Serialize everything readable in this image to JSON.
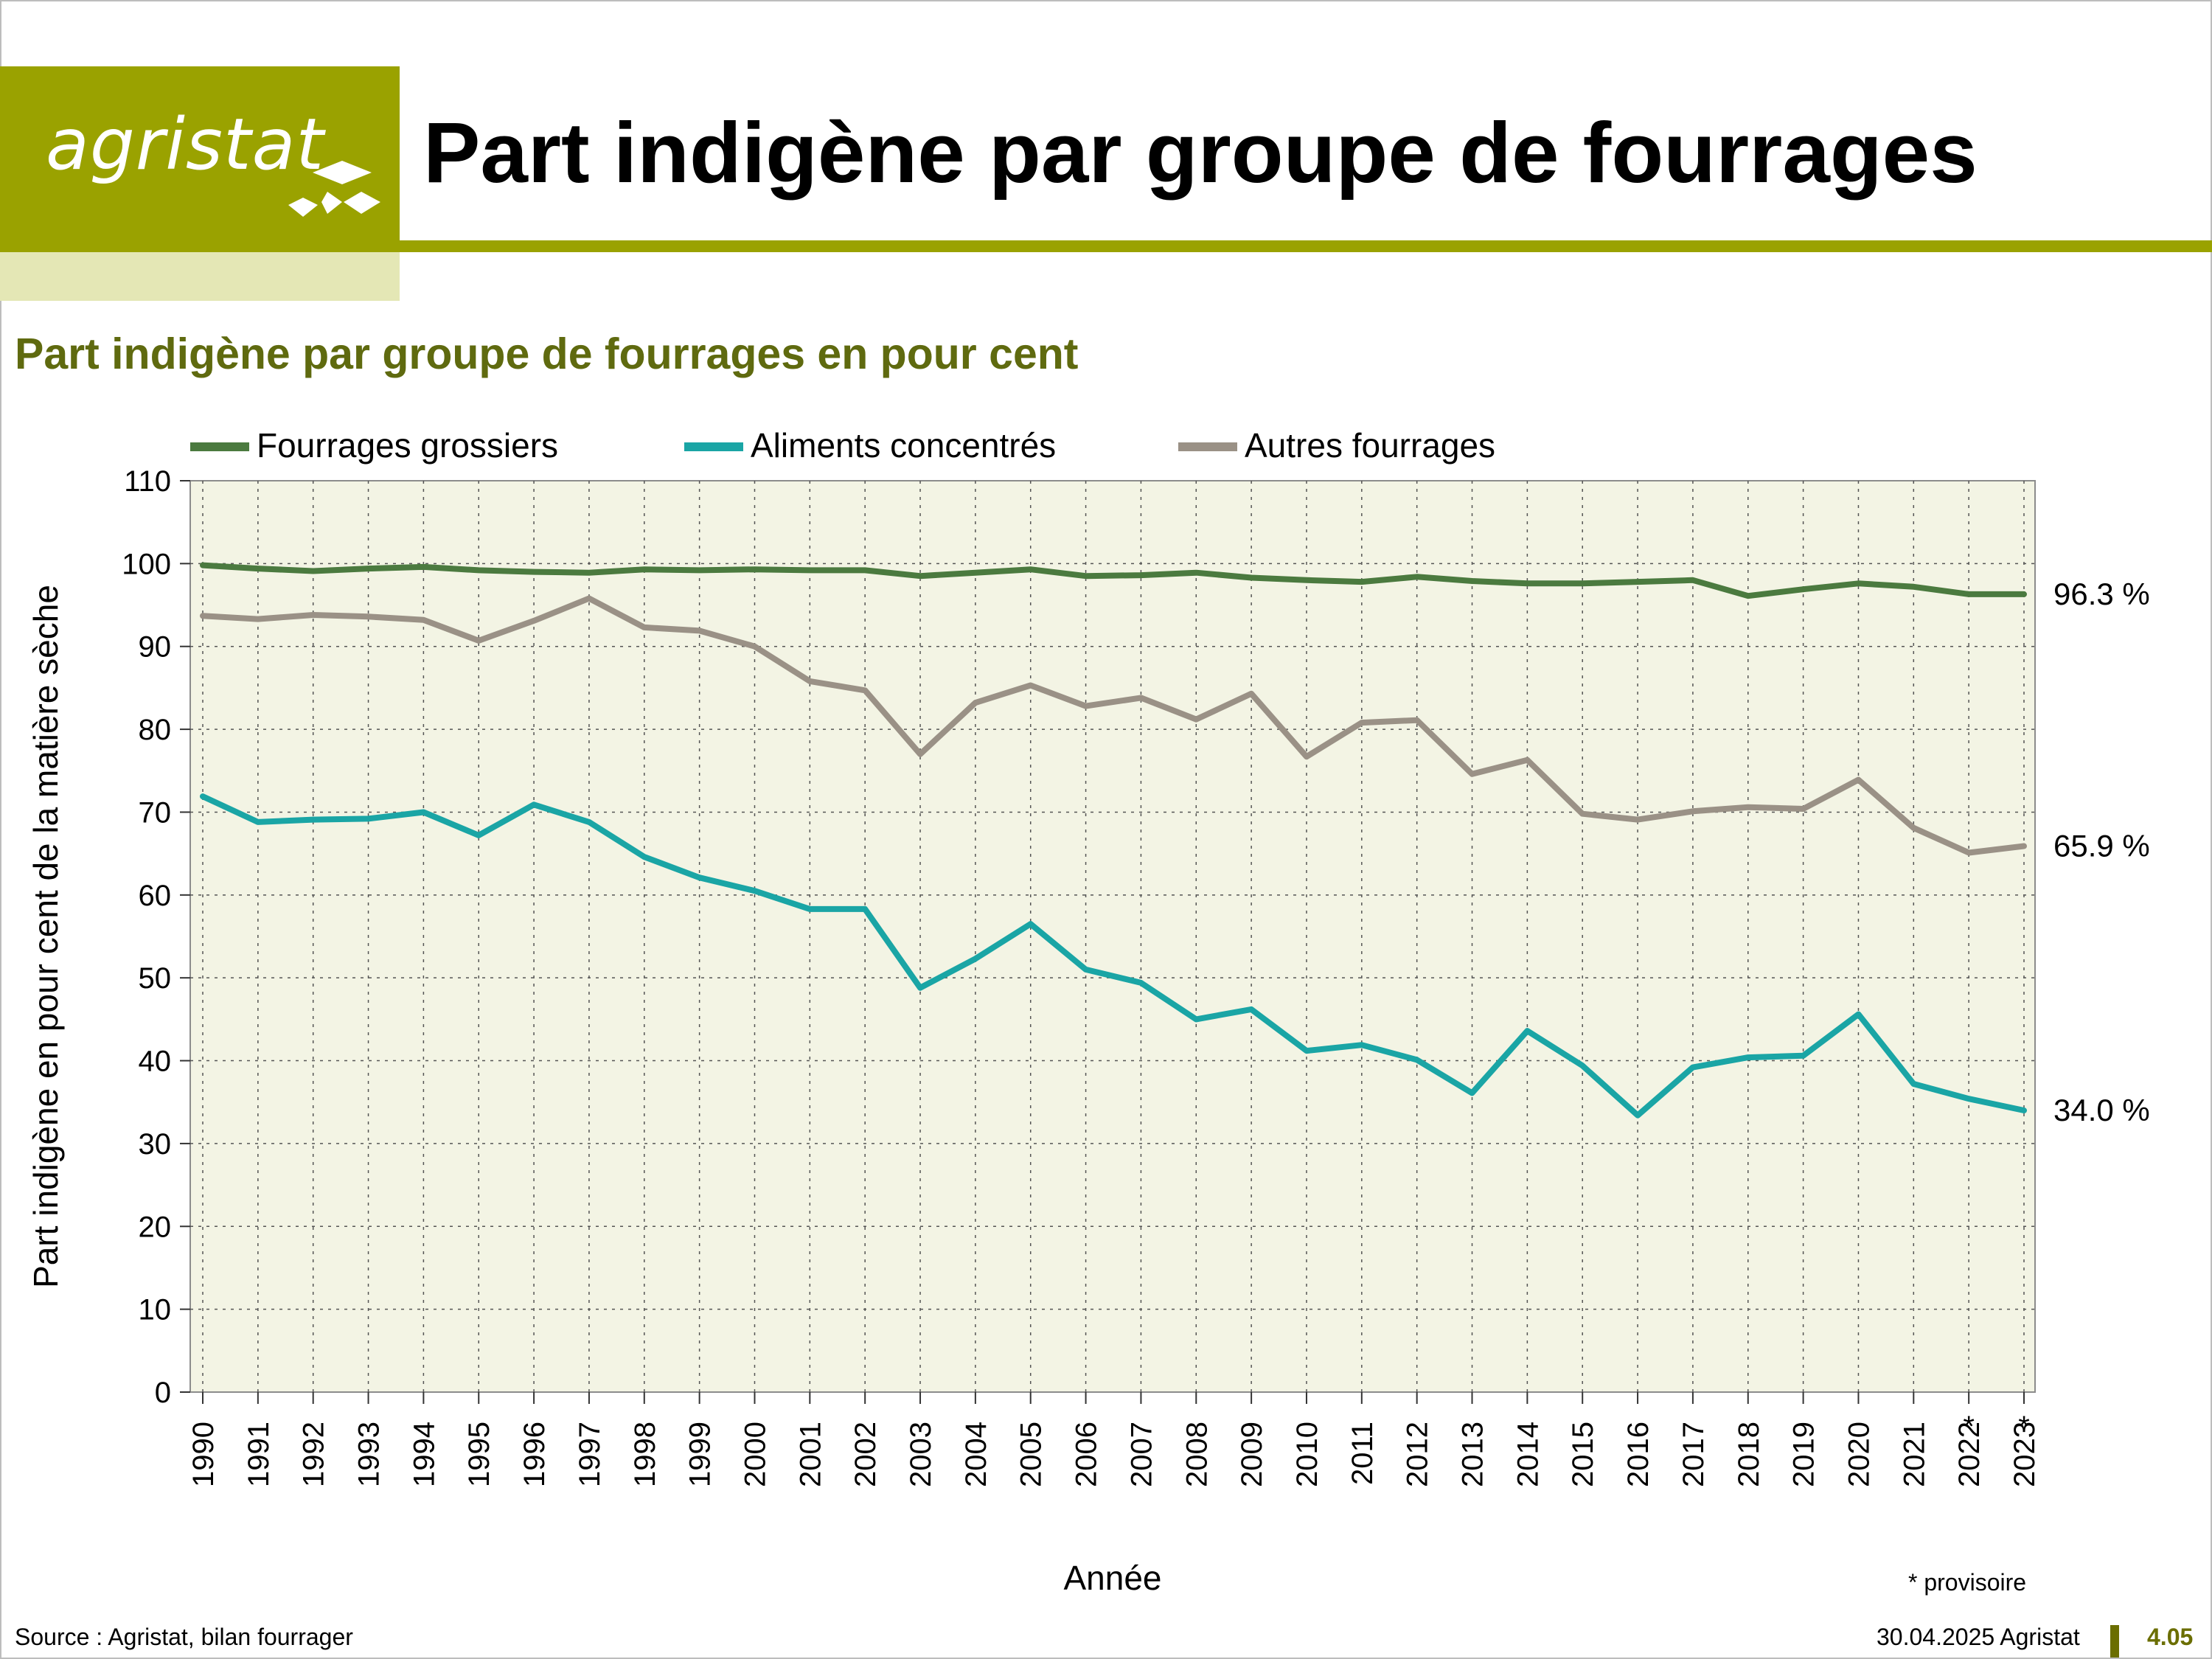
{
  "header": {
    "logo_text": "agristat",
    "title": "Part indigène par groupe de fourrages"
  },
  "colors": {
    "brand": "#9aa200",
    "brand_light": "#e4e7b5",
    "subtitle": "#5f6a0f",
    "plot_bg": "#f3f4e4"
  },
  "chart_data": {
    "type": "line",
    "title": "Part indigène par groupe de fourrages en pour cent",
    "xlabel": "Année",
    "ylabel": "Part indigène en pour cent de la matière sèche",
    "ylim": [
      0,
      110
    ],
    "yticks": [
      0,
      10,
      20,
      30,
      40,
      50,
      60,
      70,
      80,
      90,
      100,
      110
    ],
    "grid": true,
    "legend_position": "top",
    "x": [
      "1990",
      "1991",
      "1992",
      "1993",
      "1994",
      "1995",
      "1996",
      "1997",
      "1998",
      "1999",
      "2000",
      "2001",
      "2002",
      "2003",
      "2004",
      "2005",
      "2006",
      "2007",
      "2008",
      "2009",
      "2010",
      "2011",
      "2012",
      "2013",
      "2014",
      "2015",
      "2016",
      "2017",
      "2018",
      "2019",
      "2020",
      "2021",
      "2022",
      "2023"
    ],
    "provisional_marker": "*",
    "provisional_years": [
      "2022",
      "2023"
    ],
    "series": [
      {
        "name": "Fourrages grossiers",
        "color": "#4b7a3f",
        "values": [
          99.8,
          99.4,
          99.1,
          99.4,
          99.6,
          99.2,
          99.0,
          98.9,
          99.3,
          99.2,
          99.3,
          99.2,
          99.2,
          98.5,
          98.9,
          99.3,
          98.5,
          98.6,
          98.9,
          98.3,
          98.0,
          97.8,
          98.4,
          97.9,
          97.6,
          97.6,
          97.8,
          98.0,
          96.1,
          96.9,
          97.6,
          97.2,
          96.3,
          96.3
        ],
        "end_label": "96.3 %"
      },
      {
        "name": "Aliments concentrés",
        "color": "#1aa5a5",
        "values": [
          71.9,
          68.8,
          69.1,
          69.2,
          70.0,
          67.2,
          70.9,
          68.8,
          64.6,
          62.1,
          60.5,
          58.3,
          58.3,
          48.8,
          52.3,
          56.5,
          51.0,
          49.4,
          45.0,
          46.2,
          41.2,
          41.9,
          40.1,
          36.1,
          43.6,
          39.4,
          33.4,
          39.2,
          40.4,
          40.6,
          45.6,
          37.2,
          35.4,
          34.0
        ],
        "end_label": "34.0 %"
      },
      {
        "name": "Autres fourrages",
        "color": "#9a9186",
        "values": [
          93.7,
          93.3,
          93.8,
          93.6,
          93.2,
          90.7,
          93.1,
          95.8,
          92.3,
          91.9,
          90.0,
          85.8,
          84.7,
          77.0,
          83.2,
          85.3,
          82.8,
          83.8,
          81.2,
          84.3,
          76.7,
          80.8,
          81.1,
          74.6,
          76.3,
          69.8,
          69.1,
          70.1,
          70.6,
          70.4,
          73.9,
          68.1,
          65.1,
          65.9
        ],
        "end_label": "65.9 %"
      }
    ],
    "note": "* provisoire"
  },
  "footer": {
    "source": "Source : Agristat, bilan fourrager",
    "date": "30.04.2025 Agristat",
    "page": "4.05"
  }
}
